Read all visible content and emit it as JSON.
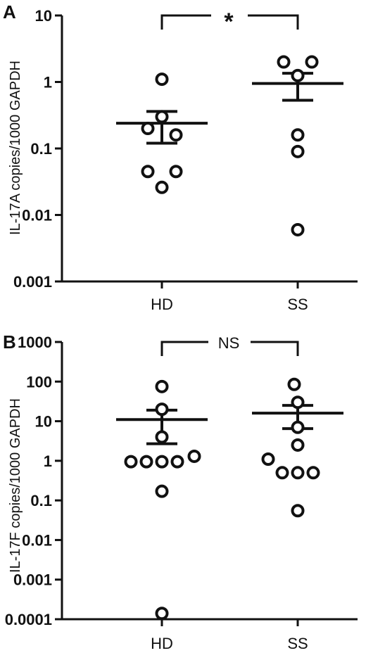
{
  "chart_data": [
    {
      "type": "scatter",
      "panel_label": "A",
      "ylabel": "IL-17A copies/1000 GAPDH",
      "yscale": "log",
      "ylim": [
        0.001,
        10
      ],
      "yticks": [
        0.001,
        0.01,
        0.1,
        1,
        10
      ],
      "ytick_labels": [
        "0.001",
        "0.01",
        "0.1",
        "1",
        "10"
      ],
      "categories": [
        "HD",
        "SS"
      ],
      "points": [
        {
          "x": "HD",
          "y": 1.1
        },
        {
          "x": "HD",
          "y": 0.3
        },
        {
          "x": "HD",
          "y": 0.2
        },
        {
          "x": "HD",
          "y": 0.16
        },
        {
          "x": "HD",
          "y": 0.045
        },
        {
          "x": "HD",
          "y": 0.045
        },
        {
          "x": "HD",
          "y": 0.026
        },
        {
          "x": "SS",
          "y": 2.0
        },
        {
          "x": "SS",
          "y": 2.0
        },
        {
          "x": "SS",
          "y": 1.25
        },
        {
          "x": "SS",
          "y": 0.16
        },
        {
          "x": "SS",
          "y": 0.09
        },
        {
          "x": "SS",
          "y": 0.006
        }
      ],
      "summary": [
        {
          "x": "HD",
          "mean": 0.24,
          "sem_low": 0.12,
          "sem_high": 0.36
        },
        {
          "x": "SS",
          "mean": 0.95,
          "sem_low": 0.53,
          "sem_high": 1.35
        }
      ],
      "significance": "*",
      "grid": false
    },
    {
      "type": "scatter",
      "panel_label": "B",
      "ylabel": "IL-17F copies/1000 GAPDH",
      "yscale": "log",
      "ylim": [
        0.0001,
        1000
      ],
      "yticks": [
        0.0001,
        0.001,
        0.01,
        0.1,
        1,
        10,
        100,
        1000
      ],
      "ytick_labels": [
        "0.0001",
        "0.001",
        "0.01",
        "0.1",
        "1",
        "10",
        "100",
        "1000"
      ],
      "categories": [
        "HD",
        "SS"
      ],
      "points": [
        {
          "x": "HD",
          "y": 75
        },
        {
          "x": "HD",
          "y": 20
        },
        {
          "x": "HD",
          "y": 4
        },
        {
          "x": "HD",
          "y": 1.3
        },
        {
          "x": "HD",
          "y": 0.95
        },
        {
          "x": "HD",
          "y": 0.95
        },
        {
          "x": "HD",
          "y": 0.95
        },
        {
          "x": "HD",
          "y": 0.95
        },
        {
          "x": "HD",
          "y": 0.17
        },
        {
          "x": "HD",
          "y": 0.00014
        },
        {
          "x": "SS",
          "y": 85
        },
        {
          "x": "SS",
          "y": 30
        },
        {
          "x": "SS",
          "y": 7
        },
        {
          "x": "SS",
          "y": 2.5
        },
        {
          "x": "SS",
          "y": 1.1
        },
        {
          "x": "SS",
          "y": 0.5
        },
        {
          "x": "SS",
          "y": 0.5
        },
        {
          "x": "SS",
          "y": 0.5
        },
        {
          "x": "SS",
          "y": 0.055
        }
      ],
      "summary": [
        {
          "x": "HD",
          "mean": 11,
          "sem_low": 2.7,
          "sem_high": 19
        },
        {
          "x": "SS",
          "mean": 16,
          "sem_low": 6.5,
          "sem_high": 25
        }
      ],
      "significance": "NS",
      "grid": false
    }
  ]
}
